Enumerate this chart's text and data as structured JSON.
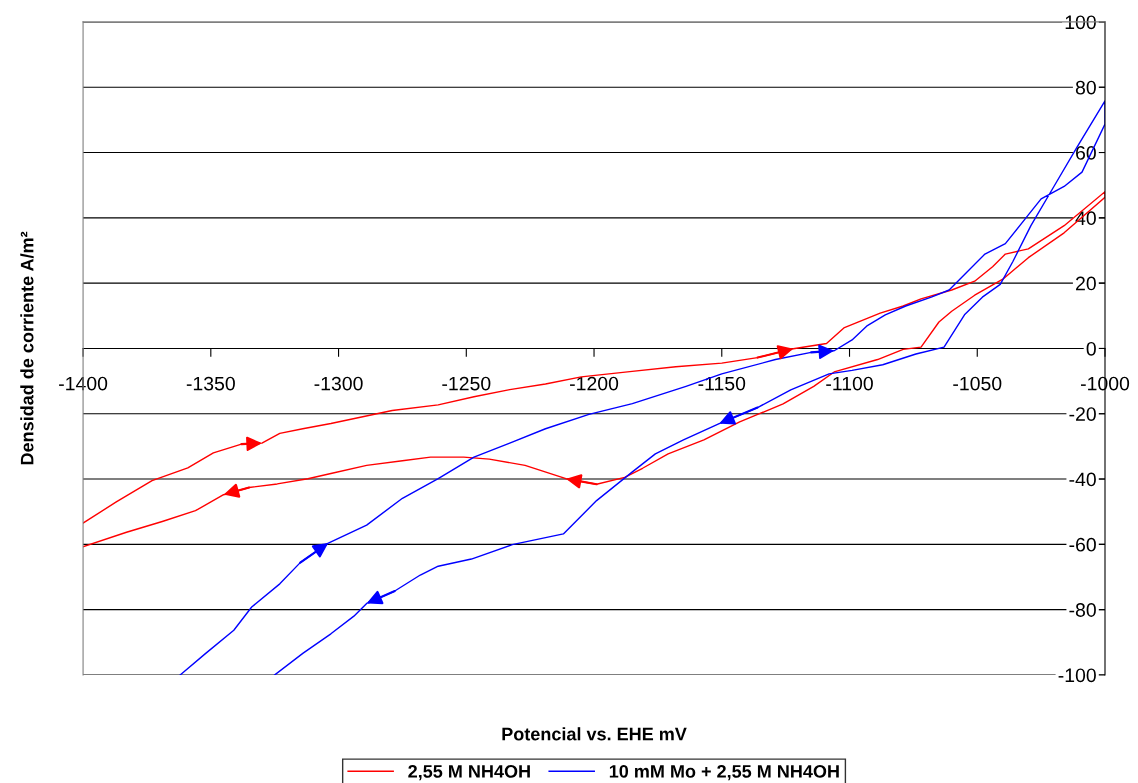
{
  "chart_data": {
    "type": "line",
    "xlabel": "Potencial vs. EHE mV",
    "ylabel": "Densidad de corriente A/m²",
    "xlim": [
      -1400,
      -1000
    ],
    "xticks": [
      -1400,
      -1350,
      -1300,
      -1250,
      -1200,
      -1150,
      -1100,
      -1050,
      -1000
    ],
    "ylim": [
      -100,
      100
    ],
    "yticks": [
      -100,
      -80,
      -60,
      -40,
      -20,
      0,
      20,
      40,
      60,
      80,
      100
    ],
    "grid": "y",
    "legend": "bottom",
    "line_style": "solid",
    "series": [
      {
        "name": "2,55 M NH4OH",
        "color": "#ff0000",
        "x": [
          -1400,
          -1387,
          -1373,
          -1359,
          -1349,
          -1338,
          -1330,
          -1323,
          -1314,
          -1303,
          -1279,
          -1261,
          -1247,
          -1233,
          -1219,
          -1205,
          -1186,
          -1168,
          -1150,
          -1136,
          -1122,
          -1109,
          -1102,
          -1088,
          -1079,
          -1072,
          -1060,
          -1051,
          -1044,
          -1039,
          -1030,
          -1016,
          -1000,
          -1000,
          -1016,
          -1030,
          -1040,
          -1051,
          -1060,
          -1065,
          -1072,
          -1079,
          -1089,
          -1106,
          -1114,
          -1126,
          -1143,
          -1157,
          -1171,
          -1181,
          -1188,
          -1199,
          -1211,
          -1227,
          -1241,
          -1251,
          -1264,
          -1275,
          -1289,
          -1303,
          -1312,
          -1324,
          -1335,
          -1345,
          -1356,
          -1369,
          -1383,
          -1400
        ],
        "values": [
          -53.5,
          -47,
          -40.5,
          -36.6,
          -32,
          -29.3,
          -29,
          -26,
          -24.6,
          -23,
          -19,
          -17.3,
          -14.8,
          -12.6,
          -10.9,
          -8.7,
          -7.1,
          -5.6,
          -4.5,
          -2.8,
          -0.1,
          1.5,
          6.4,
          10.8,
          13,
          15.2,
          17.9,
          20.6,
          25,
          28.9,
          30.5,
          37.6,
          48,
          46.3,
          35.4,
          27.8,
          21.2,
          16.3,
          11.4,
          8.1,
          0.4,
          -0.3,
          -3.4,
          -7.2,
          -11.6,
          -17,
          -22.5,
          -28,
          -32.3,
          -36.7,
          -39.5,
          -41.6,
          -39.9,
          -35.8,
          -33.9,
          -33.3,
          -33.3,
          -34.4,
          -35.8,
          -38.3,
          -39.9,
          -41.5,
          -42.6,
          -44.8,
          -49.7,
          -53,
          -56.3,
          -60.7
        ]
      },
      {
        "name": "10 mM Mo + 2,55 M NH4OH",
        "color": "#0000ff",
        "x": [
          -1362,
          -1352,
          -1341,
          -1334,
          -1323,
          -1315,
          -1304,
          -1289,
          -1275,
          -1261,
          -1247,
          -1233,
          -1219,
          -1202,
          -1185,
          -1164,
          -1150,
          -1129,
          -1115,
          -1106,
          -1099,
          -1093,
          -1086,
          -1078,
          -1068,
          -1061,
          -1054,
          -1047,
          -1039,
          -1030,
          -1025,
          -1016,
          -1009,
          -1000,
          -1000,
          -1011,
          -1020,
          -1029,
          -1036,
          -1041,
          -1048,
          -1055,
          -1063,
          -1074,
          -1087,
          -1099,
          -1108,
          -1123,
          -1136,
          -1151,
          -1165,
          -1176,
          -1185,
          -1199,
          -1212,
          -1232,
          -1248,
          -1261,
          -1268,
          -1278,
          -1289,
          -1294,
          -1303,
          -1314,
          -1325
        ],
        "values": [
          -100,
          -93.4,
          -86.3,
          -79.2,
          -72.1,
          -65.6,
          -59.6,
          -54.1,
          -45.9,
          -39.9,
          -33.3,
          -29,
          -24.6,
          -20.2,
          -16.9,
          -11.6,
          -7.8,
          -3.4,
          -1.2,
          -0.7,
          2.6,
          7,
          10.3,
          13,
          15.7,
          17.9,
          23.4,
          28.9,
          32.1,
          40.9,
          45.8,
          49.6,
          54,
          68.7,
          75.8,
          61.6,
          49.6,
          37.6,
          26.7,
          19.6,
          15.7,
          10.3,
          0.4,
          -1.7,
          -5,
          -6.7,
          -7.8,
          -12.7,
          -18.1,
          -23,
          -28,
          -32.3,
          -37.8,
          -46.6,
          -56.8,
          -60.1,
          -64.5,
          -66.7,
          -69.4,
          -74.3,
          -78.1,
          -82,
          -87.4,
          -93.4,
          -100
        ]
      }
    ]
  }
}
